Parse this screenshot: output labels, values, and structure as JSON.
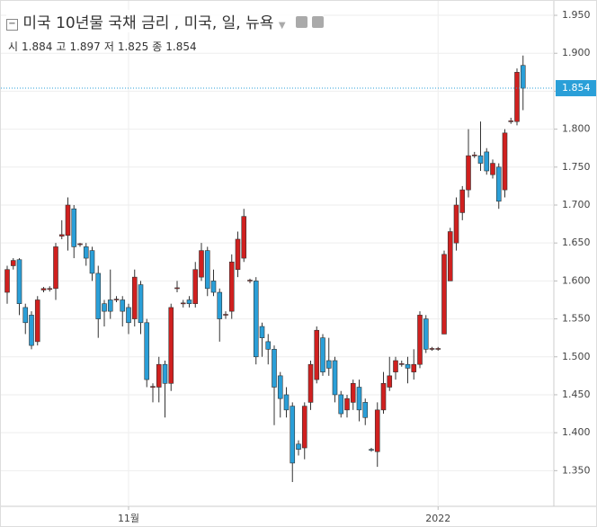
{
  "chart_data": {
    "type": "candlestick",
    "title": "미국 10년물 국채 금리 , 미국, 일, 뉴욕",
    "ohlc_legend": [
      {
        "label": "시",
        "value": 1.884
      },
      {
        "label": "고",
        "value": 1.897
      },
      {
        "label": "저",
        "value": 1.825
      },
      {
        "label": "종",
        "value": 1.854
      }
    ],
    "categories": [
      null,
      null,
      null,
      null,
      null,
      null,
      null,
      null,
      null,
      null,
      null,
      null,
      null,
      null,
      null,
      null,
      null,
      null,
      null,
      null,
      "11월",
      null,
      null,
      null,
      null,
      null,
      null,
      null,
      null,
      null,
      null,
      null,
      null,
      null,
      null,
      null,
      null,
      null,
      null,
      null,
      null,
      null,
      null,
      null,
      null,
      null,
      null,
      null,
      null,
      null,
      null,
      null,
      null,
      null,
      null,
      null,
      null,
      null,
      null,
      null,
      null,
      null,
      null,
      null,
      null,
      null,
      null,
      null,
      null,
      null,
      null,
      "2022",
      null,
      null,
      null,
      null,
      null,
      null,
      null,
      null,
      null,
      null,
      null,
      null,
      null,
      null
    ],
    "series": [
      {
        "up_color": "#d0201f",
        "down_color": "#2a9fd8",
        "open": [
          1.585,
          1.62,
          1.628,
          1.565,
          1.555,
          1.52,
          1.588,
          1.589,
          1.59,
          1.659,
          1.66,
          1.695,
          1.648,
          1.645,
          1.64,
          1.61,
          1.57,
          1.575,
          1.575,
          1.575,
          1.565,
          1.55,
          1.595,
          1.545,
          1.46,
          1.46,
          1.49,
          1.465,
          1.59,
          1.57,
          1.575,
          1.57,
          1.605,
          1.64,
          1.6,
          1.585,
          1.555,
          1.56,
          1.615,
          1.63,
          1.6,
          1.6,
          1.54,
          1.52,
          1.51,
          1.475,
          1.45,
          1.435,
          1.385,
          1.38,
          1.44,
          1.47,
          1.525,
          1.495,
          1.495,
          1.45,
          1.43,
          1.44,
          1.46,
          1.44,
          1.378,
          1.375,
          1.43,
          1.46,
          1.48,
          1.49,
          1.49,
          1.48,
          1.49,
          1.55,
          1.51,
          1.51,
          1.53,
          1.6,
          1.65,
          1.69,
          1.72,
          1.765,
          1.765,
          1.77,
          1.74,
          1.75,
          1.72,
          1.81,
          1.81,
          1.884
        ],
        "high": [
          1.62,
          1.63,
          1.63,
          1.57,
          1.56,
          1.58,
          1.592,
          1.593,
          1.65,
          1.68,
          1.71,
          1.7,
          1.65,
          1.65,
          1.645,
          1.62,
          1.575,
          1.615,
          1.58,
          1.58,
          1.57,
          1.615,
          1.6,
          1.55,
          1.465,
          1.5,
          1.495,
          1.57,
          1.6,
          1.575,
          1.58,
          1.625,
          1.65,
          1.645,
          1.615,
          1.59,
          1.56,
          1.635,
          1.665,
          1.695,
          1.603,
          1.605,
          1.545,
          1.53,
          1.515,
          1.48,
          1.46,
          1.44,
          1.39,
          1.44,
          1.495,
          1.54,
          1.53,
          1.525,
          1.5,
          1.455,
          1.45,
          1.47,
          1.47,
          1.445,
          1.38,
          1.44,
          1.48,
          1.5,
          1.5,
          1.495,
          1.5,
          1.51,
          1.56,
          1.555,
          1.513,
          1.513,
          1.64,
          1.67,
          1.71,
          1.725,
          1.8,
          1.77,
          1.81,
          1.775,
          1.76,
          1.755,
          1.8,
          1.815,
          1.88,
          1.897
        ],
        "low": [
          1.57,
          1.615,
          1.555,
          1.53,
          1.51,
          1.515,
          1.585,
          1.586,
          1.575,
          1.655,
          1.64,
          1.63,
          1.645,
          1.62,
          1.6,
          1.525,
          1.54,
          1.55,
          1.572,
          1.54,
          1.53,
          1.54,
          1.53,
          1.46,
          1.44,
          1.44,
          1.42,
          1.455,
          1.585,
          1.565,
          1.565,
          1.565,
          1.6,
          1.58,
          1.58,
          1.52,
          1.55,
          1.55,
          1.605,
          1.625,
          1.597,
          1.49,
          1.5,
          1.49,
          1.41,
          1.42,
          1.42,
          1.335,
          1.37,
          1.365,
          1.43,
          1.465,
          1.475,
          1.475,
          1.44,
          1.42,
          1.42,
          1.43,
          1.415,
          1.41,
          1.375,
          1.355,
          1.425,
          1.455,
          1.47,
          1.487,
          1.465,
          1.47,
          1.485,
          1.505,
          1.508,
          1.508,
          1.53,
          1.6,
          1.64,
          1.68,
          1.71,
          1.762,
          1.745,
          1.74,
          1.735,
          1.695,
          1.71,
          1.807,
          1.805,
          1.825
        ],
        "close": [
          1.615,
          1.627,
          1.57,
          1.545,
          1.515,
          1.575,
          1.59,
          1.59,
          1.645,
          1.661,
          1.7,
          1.645,
          1.649,
          1.63,
          1.61,
          1.55,
          1.56,
          1.56,
          1.576,
          1.56,
          1.545,
          1.605,
          1.545,
          1.47,
          1.461,
          1.49,
          1.465,
          1.565,
          1.591,
          1.571,
          1.57,
          1.615,
          1.64,
          1.59,
          1.585,
          1.55,
          1.556,
          1.625,
          1.655,
          1.685,
          1.601,
          1.5,
          1.525,
          1.51,
          1.46,
          1.445,
          1.43,
          1.36,
          1.378,
          1.435,
          1.49,
          1.535,
          1.48,
          1.485,
          1.45,
          1.425,
          1.445,
          1.465,
          1.43,
          1.42,
          1.377,
          1.43,
          1.465,
          1.475,
          1.495,
          1.491,
          1.485,
          1.49,
          1.555,
          1.51,
          1.511,
          1.511,
          1.635,
          1.665,
          1.7,
          1.72,
          1.765,
          1.766,
          1.755,
          1.745,
          1.755,
          1.705,
          1.795,
          1.811,
          1.875,
          1.854
        ]
      }
    ],
    "last_price": 1.854,
    "last_price_color": "#2a9fd8",
    "ylim": [
      1.303,
      1.969
    ],
    "yticks": [
      {
        "value": 1.95,
        "label": "1.950"
      },
      {
        "value": 1.9,
        "label": "1.900"
      },
      {
        "value": 1.85,
        "label": "1.850"
      },
      {
        "value": 1.8,
        "label": "1.800"
      },
      {
        "value": 1.75,
        "label": "1.750"
      },
      {
        "value": 1.7,
        "label": "1.700"
      },
      {
        "value": 1.65,
        "label": "1.650"
      },
      {
        "value": 1.6,
        "label": "1.600"
      },
      {
        "value": 1.55,
        "label": "1.550"
      },
      {
        "value": 1.5,
        "label": "1.500"
      },
      {
        "value": 1.45,
        "label": "1.450"
      },
      {
        "value": 1.4,
        "label": "1.400"
      },
      {
        "value": 1.35,
        "label": "1.350"
      }
    ],
    "grid": true
  }
}
